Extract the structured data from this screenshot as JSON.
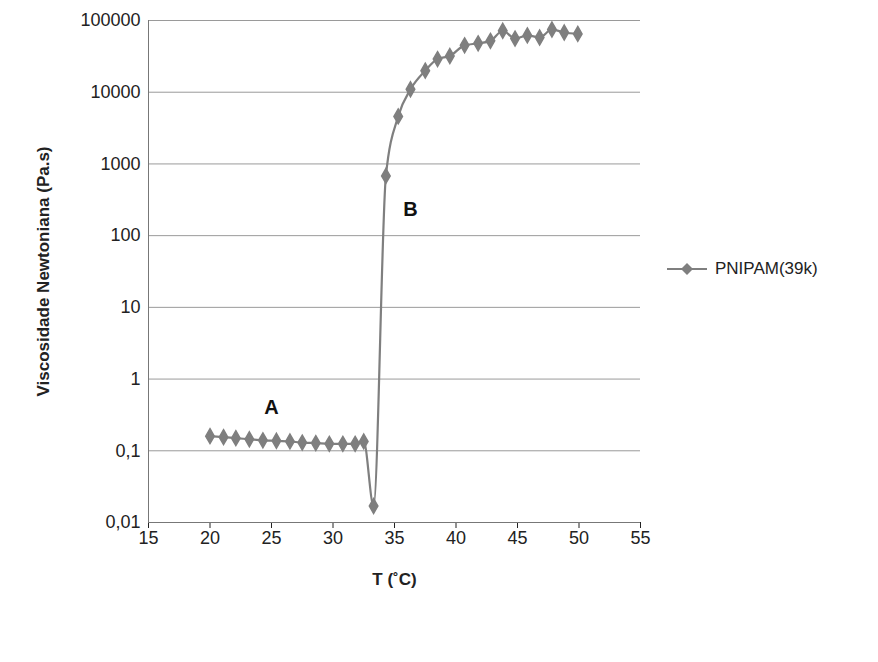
{
  "chart_data": {
    "type": "line",
    "x_label": "T (˚C)",
    "y_label": "Viscosidade Newtoniana (Pa.s)",
    "x": [
      20,
      21.1,
      22.1,
      23.2,
      24.3,
      25.4,
      26.5,
      27.5,
      28.6,
      29.7,
      30.8,
      31.8,
      32.5,
      33.3,
      34.3,
      35.3,
      36.3,
      37.5,
      38.5,
      39.5,
      40.7,
      41.8,
      42.8,
      43.8,
      44.8,
      45.8,
      46.8,
      47.8,
      48.8,
      49.9
    ],
    "series": [
      {
        "name": "PNIPAM(39k)",
        "color": "#7f7f7f",
        "marker": "diamond",
        "line_style": "solid",
        "values": [
          0.16,
          0.155,
          0.15,
          0.145,
          0.14,
          0.138,
          0.135,
          0.13,
          0.128,
          0.125,
          0.125,
          0.125,
          0.135,
          0.017,
          680,
          4600,
          11000,
          20000,
          29000,
          32000,
          45000,
          48000,
          52000,
          72000,
          56000,
          62000,
          58000,
          75000,
          68000,
          65000
        ]
      }
    ],
    "annotations": [
      {
        "text": "A",
        "x": 25,
        "y": 0.4
      },
      {
        "text": "B",
        "x": 36.3,
        "y": 230
      }
    ],
    "xlim": [
      15,
      55
    ],
    "xticks": [
      15,
      20,
      25,
      30,
      35,
      40,
      45,
      50,
      55
    ],
    "ylim": [
      0.01,
      100000
    ],
    "yticks": [
      {
        "value": 0.01,
        "label": "0,01"
      },
      {
        "value": 0.1,
        "label": "0,1"
      },
      1,
      10,
      100,
      1000,
      10000,
      100000
    ],
    "log": "y",
    "grid": true,
    "legend": "right"
  }
}
